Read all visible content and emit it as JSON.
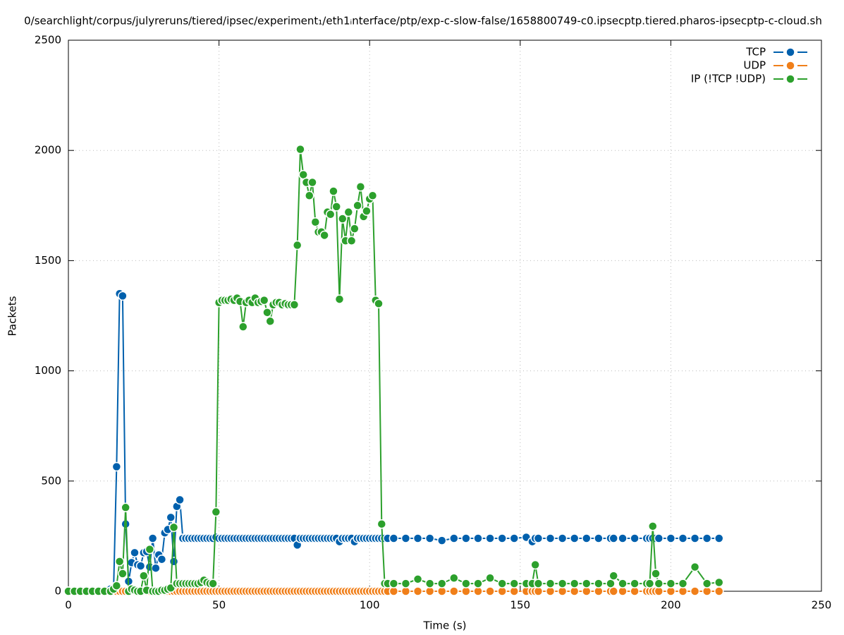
{
  "chart_data": {
    "type": "line",
    "title": "0/searchlight/corpus/julyreruns/tiered/ipsec/experiment₁/eth1ᵢnterface/ptp/exp-c-slow-false/1658800749-c0.ipsecptp.tiered.pharos-ipsecptp-c-cloud.sh",
    "xlabel": "Time (s)",
    "ylabel": "Packets",
    "x": [
      0,
      2,
      4,
      6,
      8,
      10,
      12,
      14,
      15,
      16,
      17,
      18,
      19,
      20,
      21,
      22,
      23,
      24,
      25,
      26,
      27,
      28,
      29,
      30,
      31,
      32,
      33,
      34,
      35,
      36,
      37,
      38,
      39,
      40,
      41,
      42,
      43,
      44,
      45,
      46,
      47,
      48,
      49,
      50,
      51,
      52,
      53,
      54,
      55,
      56,
      57,
      58,
      59,
      60,
      61,
      62,
      63,
      64,
      65,
      66,
      67,
      68,
      69,
      70,
      71,
      72,
      73,
      74,
      75,
      76,
      77,
      78,
      79,
      80,
      81,
      82,
      83,
      84,
      85,
      86,
      87,
      88,
      89,
      90,
      91,
      92,
      93,
      94,
      95,
      96,
      97,
      98,
      99,
      100,
      101,
      102,
      103,
      104,
      105,
      106,
      108,
      112,
      116,
      120,
      124,
      128,
      132,
      136,
      140,
      144,
      148,
      152,
      154,
      155,
      156,
      160,
      164,
      168,
      172,
      176,
      180,
      181,
      184,
      188,
      192,
      193,
      194,
      195,
      196,
      200,
      204,
      208,
      212,
      216
    ],
    "series": [
      {
        "name": "TCP",
        "color": "#0060ad",
        "values": [
          0,
          5,
          5,
          5,
          5,
          5,
          5,
          10,
          10,
          565,
          1350,
          1340,
          305,
          45,
          130,
          175,
          120,
          115,
          175,
          180,
          110,
          240,
          105,
          165,
          145,
          265,
          280,
          335,
          135,
          385,
          415,
          240,
          240,
          240,
          240,
          240,
          240,
          240,
          240,
          240,
          240,
          240,
          245,
          240,
          240,
          240,
          240,
          240,
          240,
          240,
          240,
          240,
          240,
          240,
          240,
          240,
          240,
          240,
          240,
          240,
          240,
          240,
          240,
          240,
          240,
          240,
          240,
          240,
          240,
          210,
          240,
          240,
          240,
          240,
          240,
          240,
          240,
          240,
          240,
          240,
          240,
          240,
          240,
          225,
          240,
          240,
          240,
          240,
          225,
          240,
          240,
          240,
          240,
          240,
          240,
          240,
          240,
          240,
          240,
          240,
          240,
          240,
          240,
          240,
          230,
          240,
          240,
          240,
          240,
          240,
          240,
          245,
          225,
          240,
          240,
          240,
          240,
          240,
          240,
          240,
          240,
          240,
          240,
          240,
          240,
          240,
          240,
          240,
          240,
          240,
          240,
          240,
          240,
          240
        ]
      },
      {
        "name": "UDP",
        "color": "#f07f1a",
        "values": [
          0,
          0,
          0,
          0,
          0,
          0,
          0,
          0,
          0,
          0,
          0,
          0,
          0,
          0,
          0,
          0,
          0,
          0,
          0,
          0,
          0,
          0,
          0,
          0,
          0,
          0,
          0,
          0,
          0,
          0,
          0,
          0,
          0,
          0,
          0,
          0,
          0,
          0,
          0,
          0,
          0,
          0,
          0,
          0,
          0,
          0,
          0,
          0,
          0,
          0,
          0,
          0,
          0,
          0,
          0,
          0,
          0,
          0,
          0,
          0,
          0,
          0,
          0,
          0,
          0,
          0,
          0,
          0,
          0,
          0,
          0,
          0,
          0,
          0,
          0,
          0,
          0,
          0,
          0,
          0,
          0,
          0,
          0,
          0,
          0,
          0,
          0,
          0,
          0,
          0,
          0,
          0,
          0,
          0,
          0,
          0,
          0,
          0,
          0,
          0,
          0,
          0,
          0,
          0,
          0,
          0,
          0,
          0,
          0,
          0,
          0,
          0,
          0,
          0,
          0,
          0,
          0,
          0,
          0,
          0,
          0,
          0,
          0,
          0,
          0,
          0,
          0,
          0,
          0,
          0,
          0,
          0,
          0,
          0
        ]
      },
      {
        "name": "IP (!TCP  !UDP)",
        "color": "#2ca02c",
        "values": [
          0,
          0,
          0,
          0,
          0,
          0,
          0,
          0,
          10,
          25,
          135,
          80,
          380,
          0,
          10,
          5,
          0,
          0,
          70,
          5,
          190,
          0,
          0,
          0,
          5,
          5,
          10,
          15,
          290,
          35,
          35,
          35,
          35,
          35,
          35,
          35,
          35,
          40,
          50,
          40,
          35,
          35,
          360,
          1310,
          1320,
          1320,
          1320,
          1325,
          1320,
          1330,
          1315,
          1200,
          1310,
          1320,
          1310,
          1330,
          1310,
          1315,
          1320,
          1265,
          1225,
          1300,
          1310,
          1310,
          1300,
          1305,
          1300,
          1300,
          1300,
          1570,
          2005,
          1890,
          1855,
          1795,
          1855,
          1675,
          1630,
          1630,
          1615,
          1720,
          1710,
          1815,
          1745,
          1325,
          1690,
          1590,
          1720,
          1590,
          1645,
          1750,
          1835,
          1700,
          1725,
          1780,
          1795,
          1320,
          1305,
          305,
          35,
          35,
          35,
          35,
          55,
          35,
          35,
          60,
          35,
          35,
          60,
          35,
          35,
          35,
          35,
          120,
          35,
          35,
          35,
          35,
          35,
          35,
          35,
          70,
          35,
          35,
          35,
          35,
          295,
          80,
          35,
          35,
          35,
          110,
          35,
          40
        ]
      }
    ],
    "xlim": [
      0,
      250
    ],
    "xticks": [
      0,
      50,
      100,
      150,
      200,
      250
    ],
    "ylim": [
      0,
      2500
    ],
    "yticks": [
      0,
      500,
      1000,
      1500,
      2000,
      2500
    ],
    "grid": true,
    "legend": "top-right"
  }
}
